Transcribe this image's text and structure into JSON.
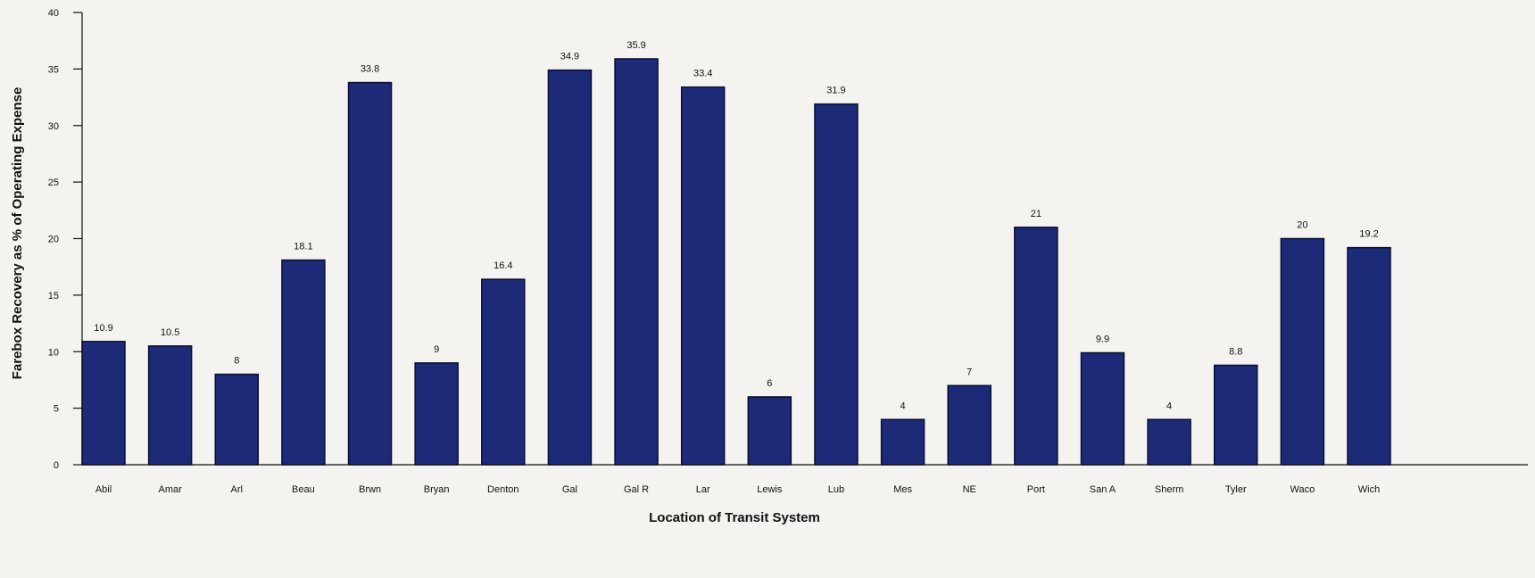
{
  "chart_data": {
    "type": "bar",
    "title": "",
    "xlabel": "Location of Transit System",
    "ylabel": "Farebox Recovery as % of Operating Expense",
    "ylim": [
      0,
      40
    ],
    "yticks": [
      0,
      5,
      10,
      15,
      20,
      25,
      30,
      35,
      40
    ],
    "grid": false,
    "categories": [
      "Abil",
      "Amar",
      "Arl",
      "Beau",
      "Brwn",
      "Bryan",
      "Denton",
      "Gal",
      "Gal R",
      "Lar",
      "Lewis",
      "Lub",
      "Mes",
      "NE",
      "Port",
      "San A",
      "Sherm",
      "Tyler",
      "Waco",
      "Wich"
    ],
    "values": [
      10.9,
      10.5,
      8,
      18.1,
      33.8,
      9,
      16.4,
      34.9,
      35.9,
      33.4,
      6,
      31.9,
      4,
      7,
      21,
      9.9,
      4,
      8.8,
      20,
      19.2
    ],
    "value_labels": [
      "10.9",
      "10.5",
      "8",
      "18.1",
      "33.8",
      "9",
      "16.4",
      "34.9",
      "35.9",
      "33.4",
      "6",
      "31.9",
      "4",
      "7",
      "21",
      "9.9",
      "4",
      "8.8",
      "20",
      "19.2"
    ],
    "bar_color": "#1c2a78",
    "bar_edge_color": "#0a0f33"
  }
}
